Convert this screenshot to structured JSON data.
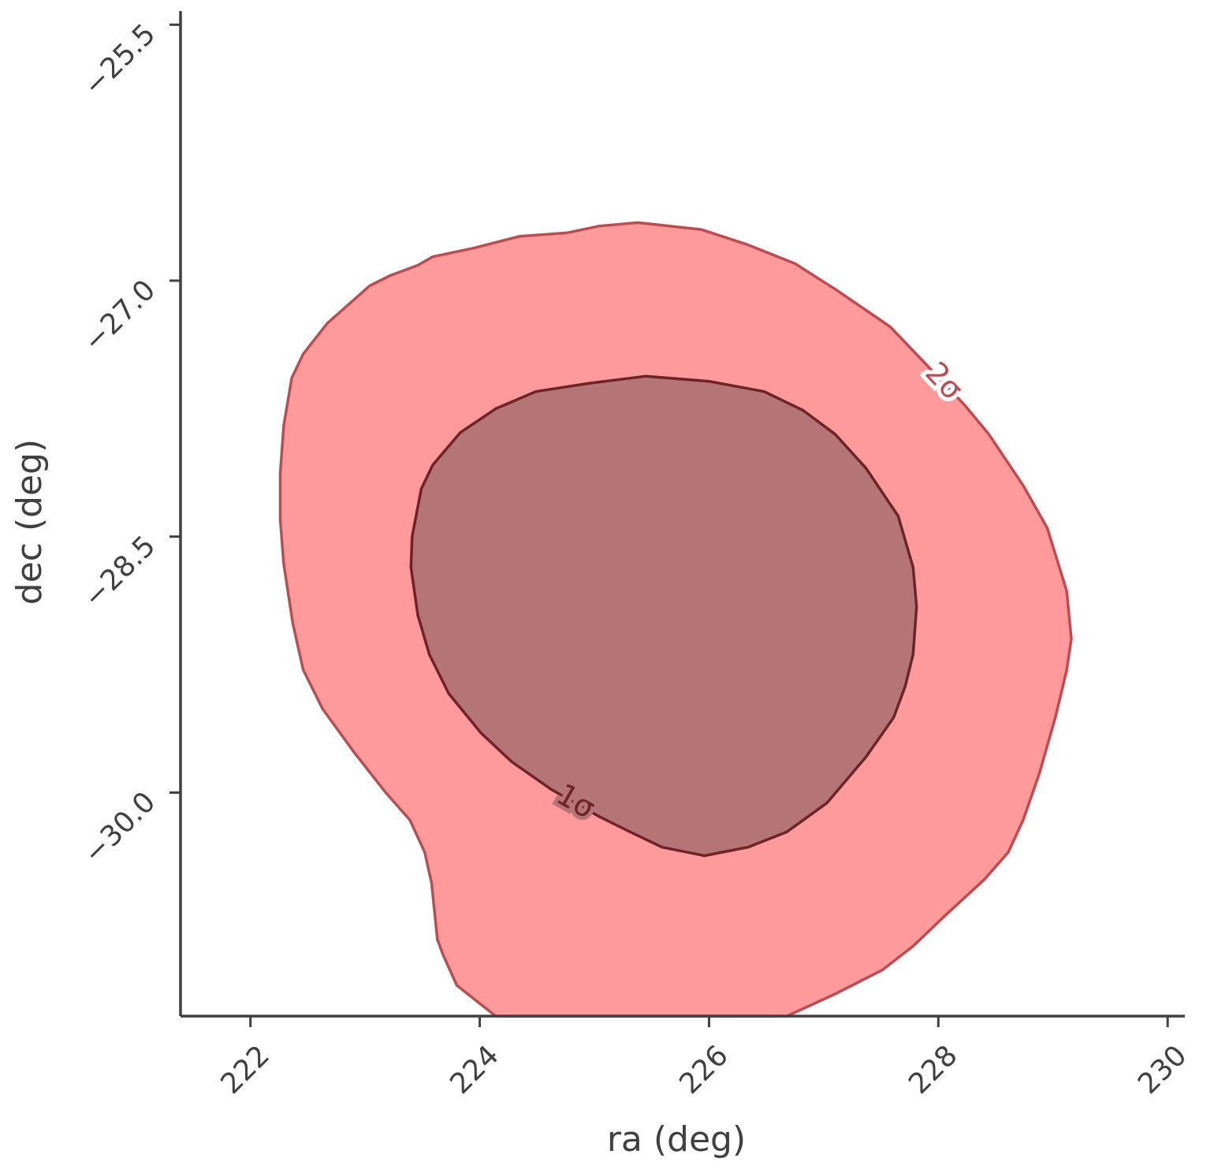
{
  "chart_data": {
    "type": "contour",
    "xlabel": "ra (deg)",
    "ylabel": "dec (deg)",
    "xlim": [
      221.39,
      230.15
    ],
    "ylim": [
      -31.31,
      -25.42
    ],
    "xticks": [
      222,
      224,
      226,
      228,
      230
    ],
    "yticks": [
      {
        "value": -25.5,
        "label": "−25.5"
      },
      {
        "value": -27.0,
        "label": "−27.0"
      },
      {
        "value": -28.5,
        "label": "−28.5"
      },
      {
        "value": -30.0,
        "label": "−30.0"
      }
    ],
    "contours": [
      {
        "label": "2σ",
        "fill": "#ff9a9c",
        "edge": "#b94d52",
        "x": [
          224.14,
          223.8,
          223.68,
          223.63,
          223.58,
          223.52,
          223.39,
          223.18,
          222.91,
          222.63,
          222.46,
          222.37,
          222.29,
          222.26,
          222.26,
          222.29,
          222.36,
          222.46,
          222.67,
          223.04,
          223.22,
          223.46,
          223.59,
          223.94,
          224.35,
          224.76,
          225.04,
          225.38,
          225.93,
          226.34,
          226.75,
          227.1,
          227.58,
          227.85,
          228.23,
          228.44,
          228.74,
          228.95,
          229.12,
          229.16,
          229.12,
          229.02,
          228.88,
          228.74,
          228.61,
          228.4,
          228.06,
          227.78,
          227.51,
          227.1,
          226.68
        ],
        "y": [
          -31.31,
          -31.13,
          -30.95,
          -30.86,
          -30.53,
          -30.35,
          -30.16,
          -30.0,
          -29.77,
          -29.51,
          -29.28,
          -29.01,
          -28.66,
          -28.4,
          -28.13,
          -27.85,
          -27.57,
          -27.43,
          -27.25,
          -27.03,
          -26.97,
          -26.91,
          -26.86,
          -26.81,
          -26.74,
          -26.72,
          -26.68,
          -26.66,
          -26.7,
          -26.79,
          -26.9,
          -27.05,
          -27.27,
          -27.46,
          -27.73,
          -27.9,
          -28.2,
          -28.45,
          -28.82,
          -29.1,
          -29.28,
          -29.56,
          -29.89,
          -30.16,
          -30.35,
          -30.51,
          -30.72,
          -30.9,
          -31.04,
          -31.18,
          -31.31
        ]
      },
      {
        "label": "1σ",
        "fill": "#b57475",
        "edge": "#6e2328",
        "x": [
          224.62,
          224.28,
          224.01,
          223.73,
          223.56,
          223.46,
          223.4,
          223.41,
          223.49,
          223.59,
          223.83,
          224.14,
          224.49,
          224.97,
          225.45,
          226.0,
          226.48,
          226.82,
          227.1,
          227.37,
          227.65,
          227.78,
          227.81,
          227.78,
          227.71,
          227.61,
          227.37,
          227.03,
          226.68,
          226.34,
          225.96,
          225.59,
          225.31,
          225.04
        ],
        "y": [
          -29.98,
          -29.82,
          -29.65,
          -29.42,
          -29.19,
          -28.96,
          -28.68,
          -28.5,
          -28.22,
          -28.08,
          -27.89,
          -27.75,
          -27.65,
          -27.6,
          -27.56,
          -27.59,
          -27.65,
          -27.76,
          -27.9,
          -28.1,
          -28.38,
          -28.68,
          -28.91,
          -29.19,
          -29.38,
          -29.56,
          -29.79,
          -30.06,
          -30.23,
          -30.32,
          -30.37,
          -30.32,
          -30.23,
          -30.14
        ]
      }
    ]
  }
}
